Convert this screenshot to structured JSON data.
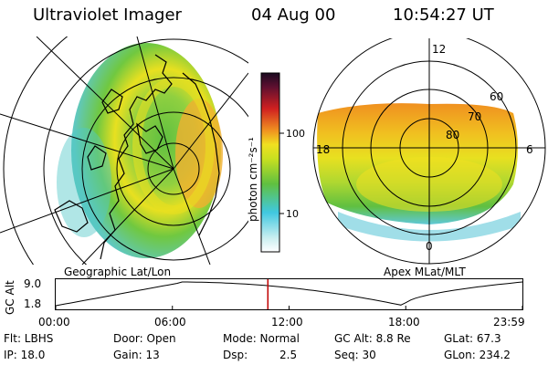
{
  "header": {
    "instrument": "Ultraviolet Imager",
    "date": "04 Aug 00",
    "time": "10:54:27 UT"
  },
  "colorbar": {
    "unit_label": "photon cm⁻²s⁻¹",
    "ticks": [
      "100",
      "10"
    ]
  },
  "left_panel": {
    "label": "Geographic Lat/Lon"
  },
  "right_panel": {
    "label": "Apex MLat/MLT",
    "mlt_labels": [
      "12",
      "18",
      "6",
      "0"
    ],
    "lat_labels": [
      "60",
      "70",
      "80"
    ]
  },
  "altitude_plot": {
    "ylabel": "GC Alt",
    "yticks": [
      "9.0",
      "1.8"
    ],
    "xticks": [
      "00:00",
      "06:00",
      "12:00",
      "18:00",
      "23:59"
    ],
    "current_time_hours": 10.91,
    "apogee_hours": [
      6.3,
      24
    ],
    "perigee_hours": [
      0,
      17.9
    ]
  },
  "info": {
    "filter": "Flt: LBHS",
    "ip": "IP: 18.0",
    "door": "Door: Open",
    "gain": "Gain: 13",
    "mode": "Mode: Normal",
    "dsp_label": "Dsp:",
    "dsp_value": "2.5",
    "gc_alt": "GC Alt: 8.8 Re",
    "seq": "Seq: 30",
    "glat": "GLat:  67.3",
    "glon": "GLon: 234.2"
  },
  "colors": {
    "low": "#d0f0f0",
    "cyan": "#40c8e0",
    "green": "#60c040",
    "yellow": "#e8e020",
    "orange": "#f09020",
    "red": "#d02020",
    "maroon": "#601030",
    "marker": "#c00000"
  }
}
